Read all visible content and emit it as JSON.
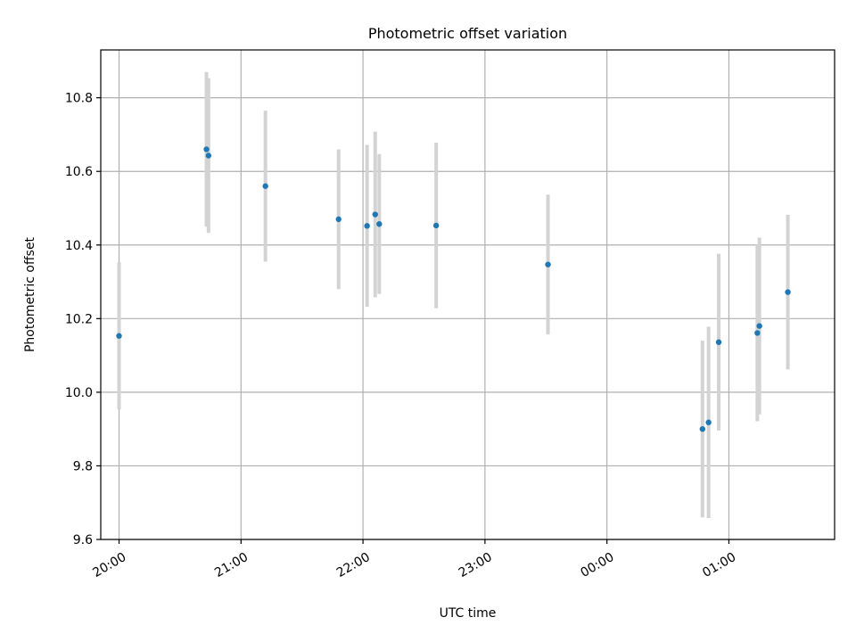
{
  "chart_data": {
    "type": "scatter",
    "title": "Photometric offset variation",
    "xlabel": "UTC time",
    "ylabel": "Photometric offset",
    "x_ticks": [
      "20:00",
      "21:00",
      "22:00",
      "23:00",
      "00:00",
      "01:00"
    ],
    "y_ticks": [
      "9.6",
      "9.8",
      "10.0",
      "10.2",
      "10.4",
      "10.6",
      "10.8"
    ],
    "xlim": [
      "19:51",
      "01:52"
    ],
    "ylim": [
      9.6,
      10.93
    ],
    "grid": true,
    "points": [
      {
        "x": "20:00",
        "y": 10.153,
        "err": 0.2
      },
      {
        "x": "20:43",
        "y": 10.66,
        "err": 0.21
      },
      {
        "x": "20:44",
        "y": 10.643,
        "err": 0.21
      },
      {
        "x": "21:12",
        "y": 10.56,
        "err": 0.205
      },
      {
        "x": "21:48",
        "y": 10.47,
        "err": 0.19
      },
      {
        "x": "22:02",
        "y": 10.452,
        "err": 0.22
      },
      {
        "x": "22:06",
        "y": 10.483,
        "err": 0.225
      },
      {
        "x": "22:08",
        "y": 10.457,
        "err": 0.19
      },
      {
        "x": "22:36",
        "y": 10.453,
        "err": 0.225
      },
      {
        "x": "23:31",
        "y": 10.347,
        "err": 0.19
      },
      {
        "x": "00:47",
        "y": 9.9,
        "err": 0.24
      },
      {
        "x": "00:50",
        "y": 9.918,
        "err": 0.26
      },
      {
        "x": "00:55",
        "y": 10.136,
        "err": 0.24
      },
      {
        "x": "01:14",
        "y": 10.161,
        "err": 0.24
      },
      {
        "x": "01:15",
        "y": 10.18,
        "err": 0.24
      },
      {
        "x": "01:29",
        "y": 10.272,
        "err": 0.21
      }
    ],
    "colors": {
      "marker": "#1f77b4",
      "errorbar": "#d3d3d3",
      "grid": "#b0b0b0",
      "axes": "#000000"
    }
  }
}
